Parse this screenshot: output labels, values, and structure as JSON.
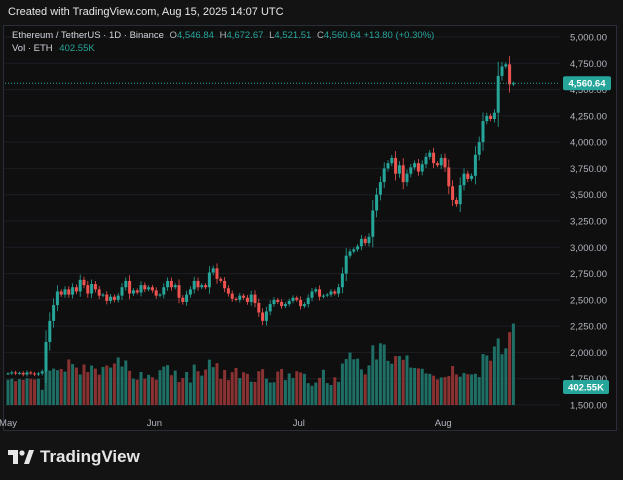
{
  "banner": "Created with TradingView.com, Aug 15, 2025 14:07 UTC",
  "legend": {
    "symbol": "Ethereum / TetherUS · 1D · Binance",
    "o_label": "O",
    "o_val": "4,546.84",
    "h_label": "H",
    "h_val": "4,672.67",
    "l_label": "L",
    "l_val": "4,521.51",
    "c_label": "C",
    "c_val": "4,560.64",
    "change": "+13.80 (+0.30%)",
    "vol_label": "Vol · ETH",
    "vol_val": "402.55K"
  },
  "colors": {
    "up": "#26a69a",
    "down": "#ef5350",
    "vol_up": "#1f6f66",
    "vol_down": "#8a3232",
    "price_tag": "#26a69a",
    "vol_tag": "#26a69a"
  },
  "footer": {
    "brand": "TradingView",
    "logo_icon": "tradingview-logo-icon"
  },
  "chart_data": {
    "type": "candlestick",
    "x_tick_labels": [
      "May",
      "Jun",
      "Jul",
      "Aug"
    ],
    "y_ticks": [
      1500,
      1750,
      2000,
      2250,
      2500,
      2750,
      3000,
      3250,
      3500,
      3750,
      4000,
      4250,
      4500,
      4750,
      5000
    ],
    "y_tick_labels": [
      "1,500.00",
      "1,750.00",
      "2,000.00",
      "2,250.00",
      "2,500.00",
      "2,750.00",
      "3,000.00",
      "3,250.00",
      "3,500.00",
      "3,750.00",
      "4,000.00",
      "4,250.00",
      "4,500.00",
      "4,750.00",
      "5,000.00"
    ],
    "ylim": [
      1500,
      5000
    ],
    "last_price": 4560.64,
    "last_price_label": "4,560.64",
    "last_volume_label": "402.55K",
    "closes": [
      1800,
      1810,
      1800,
      1805,
      1790,
      1810,
      1800,
      1790,
      1800,
      1820,
      2100,
      2300,
      2450,
      2580,
      2550,
      2600,
      2550,
      2620,
      2580,
      2690,
      2640,
      2560,
      2650,
      2600,
      2540,
      2550,
      2490,
      2530,
      2500,
      2540,
      2620,
      2680,
      2560,
      2590,
      2570,
      2640,
      2600,
      2620,
      2590,
      2540,
      2550,
      2620,
      2680,
      2620,
      2640,
      2520,
      2480,
      2550,
      2600,
      2680,
      2620,
      2640,
      2620,
      2760,
      2800,
      2700,
      2680,
      2610,
      2560,
      2510,
      2500,
      2540,
      2520,
      2480,
      2550,
      2470,
      2380,
      2300,
      2390,
      2460,
      2500,
      2480,
      2440,
      2460,
      2490,
      2520,
      2500,
      2440,
      2460,
      2520,
      2580,
      2600,
      2530,
      2540,
      2550,
      2580,
      2560,
      2620,
      2750,
      2920,
      2960,
      2980,
      3010,
      3080,
      3040,
      3100,
      3350,
      3500,
      3620,
      3750,
      3800,
      3850,
      3700,
      3780,
      3620,
      3700,
      3760,
      3800,
      3720,
      3790,
      3860,
      3900,
      3800,
      3780,
      3850,
      3760,
      3580,
      3450,
      3410,
      3590,
      3700,
      3650,
      3680,
      3880,
      4000,
      4200,
      4250,
      4220,
      4280,
      4630,
      4720,
      4740,
      4550,
      4560.64
    ],
    "volumes": [
      125,
      130,
      118,
      128,
      124,
      132,
      130,
      126,
      130,
      75,
      310,
      170,
      180,
      172,
      178,
      165,
      225,
      202,
      185,
      151,
      200,
      163,
      195,
      180,
      150,
      188,
      195,
      185,
      205,
      235,
      190,
      220,
      169,
      130,
      125,
      163,
      130,
      149,
      137,
      125,
      172,
      190,
      197,
      147,
      170,
      114,
      133,
      163,
      111,
      200,
      167,
      145,
      175,
      224,
      187,
      207,
      129,
      173,
      123,
      162,
      183,
      133,
      162,
      154,
      115,
      114,
      167,
      177,
      130,
      111,
      112,
      165,
      178,
      123,
      156,
      133,
      167,
      161,
      154,
      108,
      95,
      111,
      134,
      174,
      108,
      99,
      137,
      114,
      205,
      227,
      259,
      226,
      229,
      176,
      151,
      196,
      295,
      225,
      305,
      299,
      218,
      204,
      242,
      242,
      223,
      245,
      185,
      183,
      181,
      179,
      156,
      154,
      145,
      126,
      136,
      138,
      143,
      193,
      151,
      140,
      158,
      152,
      151,
      154,
      138,
      252,
      245,
      219,
      289,
      329,
      251,
      280,
      360,
      402.55
    ],
    "volume_unit": "K ETH"
  }
}
